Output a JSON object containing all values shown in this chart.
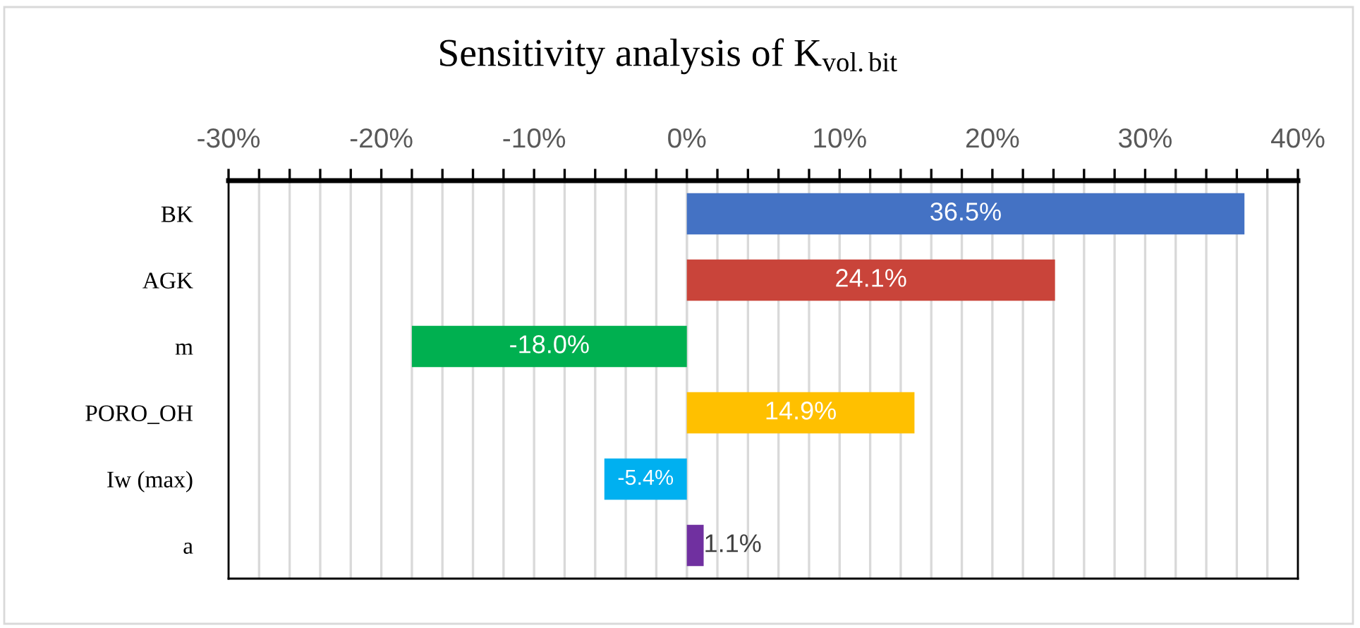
{
  "chart_data": {
    "type": "bar",
    "orientation": "horizontal",
    "title": "Sensitivity analysis of K$_{vol.bit}$",
    "categories": [
      "BK",
      "AGK",
      "m",
      "PORO_OH",
      "Iw (max)",
      "a"
    ],
    "values": [
      36.5,
      24.1,
      -18.0,
      14.9,
      -5.4,
      1.1
    ],
    "colors": [
      "#4472c4",
      "#c9443a",
      "#00b050",
      "#ffc000",
      "#00b0f0",
      "#7030a0"
    ],
    "value_labels": [
      "36.5%",
      "24.1%",
      "-18.0%",
      "14.9%",
      "-5.4%",
      "1.1%"
    ],
    "xlim": [
      -30,
      40
    ],
    "xticks": [
      {
        "value": -30,
        "label": "-30%"
      },
      {
        "value": -28,
        "label": null
      },
      {
        "value": -26,
        "label": null
      },
      {
        "value": -24,
        "label": null
      },
      {
        "value": -22,
        "label": null
      },
      {
        "value": -20,
        "label": "-20%"
      },
      {
        "value": -18,
        "label": null
      },
      {
        "value": -16,
        "label": null
      },
      {
        "value": -14,
        "label": null
      },
      {
        "value": -12,
        "label": null
      },
      {
        "value": -10,
        "label": "-10%"
      },
      {
        "value": -8,
        "label": null
      },
      {
        "value": -6,
        "label": null
      },
      {
        "value": -4,
        "label": null
      },
      {
        "value": -2,
        "label": null
      },
      {
        "value": 0,
        "label": "0%"
      },
      {
        "value": 2,
        "label": null
      },
      {
        "value": 4,
        "label": null
      },
      {
        "value": 6,
        "label": null
      },
      {
        "value": 8,
        "label": null
      },
      {
        "value": 10,
        "label": "10%"
      },
      {
        "value": 12,
        "label": null
      },
      {
        "value": 14,
        "label": null
      },
      {
        "value": 16,
        "label": null
      },
      {
        "value": 18,
        "label": null
      },
      {
        "value": 20,
        "label": "20%"
      },
      {
        "value": 22,
        "label": null
      },
      {
        "value": 24,
        "label": null
      },
      {
        "value": 26,
        "label": null
      },
      {
        "value": 28,
        "label": null
      },
      {
        "value": 30,
        "label": "30%"
      },
      {
        "value": 32,
        "label": null
      },
      {
        "value": 34,
        "label": null
      },
      {
        "value": 36,
        "label": null
      },
      {
        "value": 38,
        "label": null
      },
      {
        "value": 40,
        "label": "40%"
      }
    ],
    "grid": "x"
  }
}
